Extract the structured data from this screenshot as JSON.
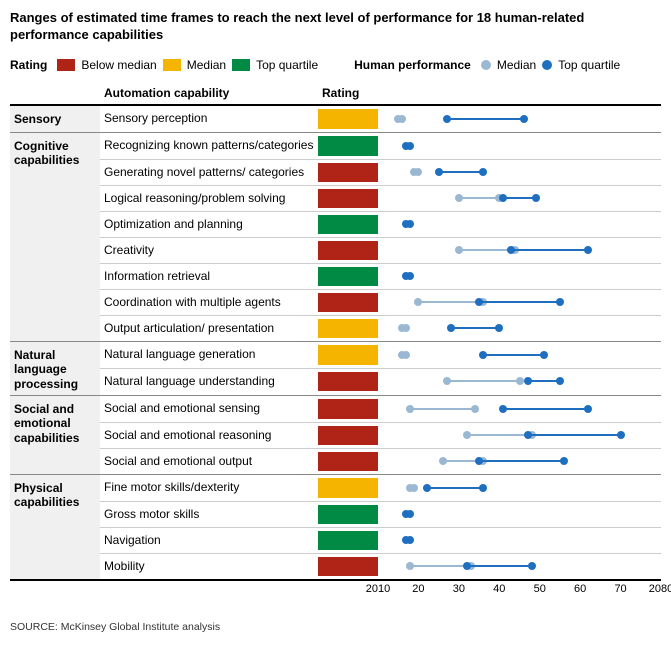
{
  "title": "Ranges of estimated time frames to reach the next level of performance for 18 human-related performance capabilities",
  "legend": {
    "rating_label": "Rating",
    "below_median": "Below median",
    "median": "Median",
    "top_quartile": "Top quartile",
    "human_perf_label": "Human performance",
    "hp_median": "Median",
    "hp_top": "Top quartile"
  },
  "colors": {
    "below_median": "#b02418",
    "median": "#f5b400",
    "top_quartile": "#008a44",
    "hp_median": "#9bb8d3",
    "hp_top": "#1f6fc1",
    "grid": "#cccccc"
  },
  "headers": {
    "capability": "Automation capability",
    "rating": "Rating"
  },
  "chart": {
    "xmin": 2010,
    "xmax": 2080,
    "ticks": [
      2010,
      2020,
      2030,
      2040,
      2050,
      2060,
      2070,
      2080
    ],
    "tick_labels": [
      "2010",
      "20",
      "30",
      "40",
      "50",
      "60",
      "70",
      "2080"
    ]
  },
  "groups": [
    {
      "label": "Sensory",
      "rows": [
        {
          "cap": "Sensory perception",
          "rating": "median",
          "median": [
            2015,
            2016
          ],
          "top": [
            2027,
            2046
          ]
        }
      ]
    },
    {
      "label": "Cognitive capabilities",
      "rows": [
        {
          "cap": "Recognizing known patterns/categories",
          "rating": "top_quartile",
          "median": null,
          "top": [
            2017,
            2018
          ]
        },
        {
          "cap": "Generating novel patterns/ categories",
          "rating": "below_median",
          "median": [
            2019,
            2020
          ],
          "top": [
            2025,
            2036
          ]
        },
        {
          "cap": "Logical reasoning/problem solving",
          "rating": "below_median",
          "median": [
            2030,
            2040
          ],
          "top": [
            2041,
            2049
          ]
        },
        {
          "cap": "Optimization and planning",
          "rating": "top_quartile",
          "median": null,
          "top": [
            2017,
            2018
          ]
        },
        {
          "cap": "Creativity",
          "rating": "below_median",
          "median": [
            2030,
            2044
          ],
          "top": [
            2043,
            2062
          ]
        },
        {
          "cap": "Information retrieval",
          "rating": "top_quartile",
          "median": null,
          "top": [
            2017,
            2018
          ]
        },
        {
          "cap": "Coordination with multiple agents",
          "rating": "below_median",
          "median": [
            2020,
            2036
          ],
          "top": [
            2035,
            2055
          ]
        },
        {
          "cap": "Output articulation/ presentation",
          "rating": "median",
          "median": [
            2016,
            2017
          ],
          "top": [
            2028,
            2040
          ]
        }
      ]
    },
    {
      "label": "Natural language processing",
      "rows": [
        {
          "cap": "Natural language generation",
          "rating": "median",
          "median": [
            2016,
            2017
          ],
          "top": [
            2036,
            2051
          ]
        },
        {
          "cap": "Natural language understanding",
          "rating": "below_median",
          "median": [
            2027,
            2045
          ],
          "top": [
            2047,
            2055
          ]
        }
      ]
    },
    {
      "label": "Social and emotional capabilities",
      "rows": [
        {
          "cap": "Social and emotional sensing",
          "rating": "below_median",
          "median": [
            2018,
            2034
          ],
          "top": [
            2041,
            2062
          ]
        },
        {
          "cap": "Social and emotional reasoning",
          "rating": "below_median",
          "median": [
            2032,
            2048
          ],
          "top": [
            2047,
            2070
          ]
        },
        {
          "cap": "Social and emotional output",
          "rating": "below_median",
          "median": [
            2026,
            2036
          ],
          "top": [
            2035,
            2056
          ]
        }
      ]
    },
    {
      "label": "Physical capabilities",
      "rows": [
        {
          "cap": "Fine motor skills/dexterity",
          "rating": "median",
          "median": [
            2018,
            2019
          ],
          "top": [
            2022,
            2036
          ]
        },
        {
          "cap": "Gross motor skills",
          "rating": "top_quartile",
          "median": null,
          "top": [
            2017,
            2018
          ]
        },
        {
          "cap": "Navigation",
          "rating": "top_quartile",
          "median": null,
          "top": [
            2017,
            2018
          ]
        },
        {
          "cap": "Mobility",
          "rating": "below_median",
          "median": [
            2018,
            2033
          ],
          "top": [
            2032,
            2048
          ]
        }
      ]
    }
  ],
  "source": "SOURCE:  McKinsey Global Institute analysis"
}
